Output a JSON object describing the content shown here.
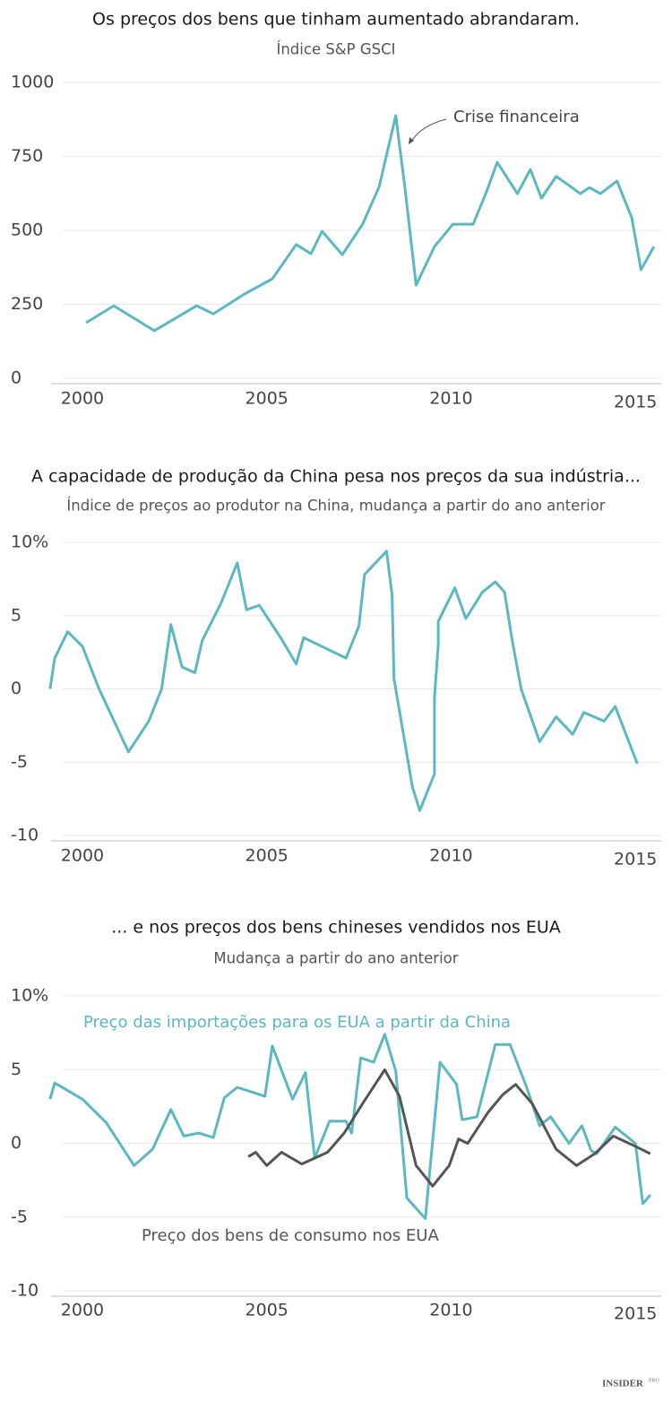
{
  "chart_data": [
    {
      "type": "line",
      "title": "Os preços dos bens que tinham aumentado abrandaram.",
      "subtitle": "Índice S&P GSCI",
      "xlim": [
        1999.15,
        2015.7
      ],
      "xticks": [
        2000,
        2005,
        2010,
        2015
      ],
      "ylim": [
        0,
        1000
      ],
      "yticks": [
        0,
        250,
        500,
        750,
        1000
      ],
      "grid": true,
      "annotations": [
        {
          "text": "Crise financeira"
        }
      ],
      "series": [
        {
          "color": "#5bb8c2",
          "x": [
            2000.1,
            2000.85,
            2001.95,
            2003.1,
            2003.55,
            2004.4,
            2005.15,
            2005.8,
            2006.2,
            2006.5,
            2007.05,
            2007.6,
            2008.05,
            2008.5,
            2008.75,
            2009.05,
            2009.55,
            2010.05,
            2010.6,
            2010.95,
            2011.25,
            2011.8,
            2012.15,
            2012.45,
            2012.85,
            2013.2,
            2013.5,
            2013.75,
            2014.05,
            2014.5,
            2014.9,
            2015.15,
            2015.5
          ],
          "values": [
            188,
            245,
            161,
            245,
            218,
            285,
            336,
            452,
            421,
            497,
            418,
            521,
            648,
            888,
            642,
            315,
            445,
            521,
            521,
            627,
            730,
            624,
            706,
            609,
            682,
            652,
            624,
            645,
            624,
            667,
            542,
            367,
            445
          ]
        }
      ]
    },
    {
      "type": "line",
      "title": "A capacidade de produção da China pesa nos preços da sua indústria...",
      "subtitle": "Índice de preços ao produtor na China, mudança a partir do ano anterior",
      "xlim": [
        1999.15,
        2015.7
      ],
      "xticks": [
        2000,
        2005,
        2010,
        2015
      ],
      "ylim": [
        -10,
        10
      ],
      "yticks": [
        -10,
        -5,
        0,
        5,
        {
          "value": 10,
          "label": "10%"
        }
      ],
      "grid": true,
      "series": [
        {
          "color": "#5bb8c2",
          "x": [
            1999.12,
            1999.25,
            1999.6,
            2000.0,
            2000.45,
            2001.25,
            2001.8,
            2002.15,
            2002.4,
            2002.7,
            2003.05,
            2003.25,
            2003.75,
            2004.2,
            2004.45,
            2004.8,
            2005.4,
            2005.8,
            2006.0,
            2007.15,
            2007.5,
            2007.65,
            2008.25,
            2008.4,
            2008.45,
            2008.95,
            2009.15,
            2009.55,
            2009.55,
            2009.65,
            2009.65,
            2010.1,
            2010.4,
            2010.85,
            2011.2,
            2011.45,
            2011.65,
            2011.9,
            2012.4,
            2012.85,
            2013.3,
            2013.6,
            2014.15,
            2014.45,
            2015.05
          ],
          "values": [
            0,
            2.1,
            3.9,
            2.9,
            0,
            -4.3,
            -2.2,
            0,
            4.4,
            1.5,
            1.1,
            3.3,
            5.8,
            8.6,
            5.4,
            5.7,
            3.4,
            1.7,
            3.5,
            2.1,
            4.3,
            7.8,
            9.4,
            6.4,
            0.7,
            -6.7,
            -8.3,
            -5.8,
            -0.6,
            3.0,
            4.6,
            6.9,
            4.8,
            6.6,
            7.3,
            6.6,
            3.4,
            0,
            -3.6,
            -1.9,
            -3.1,
            -1.6,
            -2.2,
            -1.2,
            -5.1
          ]
        }
      ]
    },
    {
      "type": "line",
      "title": "... e nos preços dos bens chineses vendidos nos EUA",
      "subtitle": "Mudança a partir do ano anterior",
      "xlim": [
        1999.15,
        2015.7
      ],
      "xticks": [
        2000,
        2005,
        2010,
        2015
      ],
      "ylim": [
        -10,
        10
      ],
      "yticks": [
        -10,
        -5,
        0,
        5,
        {
          "value": 10,
          "label": "10%"
        }
      ],
      "grid": true,
      "series": [
        {
          "name": "Preço das importações para os EUA a partir da China",
          "color": "#5bb8c2",
          "x": [
            1999.12,
            1999.25,
            2000.0,
            2000.65,
            2001.4,
            2001.9,
            2002.4,
            2002.75,
            2003.15,
            2003.55,
            2003.85,
            2004.2,
            2004.95,
            2005.15,
            2005.7,
            2006.05,
            2006.3,
            2006.7,
            2007.15,
            2007.3,
            2007.55,
            2007.9,
            2008.2,
            2008.5,
            2008.8,
            2009.3,
            2009.7,
            2010.15,
            2010.3,
            2010.7,
            2011.2,
            2011.6,
            2012.05,
            2012.4,
            2012.7,
            2013.2,
            2013.55,
            2013.8,
            2013.95,
            2014.45,
            2015.0,
            2015.2,
            2015.4
          ],
          "values": [
            3.0,
            4.1,
            3.0,
            1.4,
            -1.5,
            -0.4,
            2.3,
            0.5,
            0.7,
            0.4,
            3.1,
            3.8,
            3.2,
            6.6,
            3.0,
            4.8,
            -1.0,
            1.5,
            1.5,
            0.7,
            5.8,
            5.5,
            7.4,
            4.9,
            -3.7,
            -5.1,
            5.5,
            4.0,
            1.6,
            1.8,
            6.7,
            6.7,
            3.8,
            1.2,
            1.8,
            0,
            1.2,
            -0.5,
            -0.7,
            1.1,
            0,
            -4.1,
            -3.5
          ]
        },
        {
          "name": "Preço dos bens de consumo nos EUA",
          "color": "#555555",
          "x": [
            2004.5,
            2004.7,
            2005.0,
            2005.4,
            2005.95,
            2006.65,
            2007.1,
            2007.6,
            2008.2,
            2008.6,
            2009.05,
            2009.5,
            2009.95,
            2010.2,
            2010.45,
            2011.0,
            2011.4,
            2011.75,
            2012.2,
            2012.85,
            2013.4,
            2013.9,
            2014.4,
            2015.0,
            2015.4
          ],
          "values": [
            -0.9,
            -0.6,
            -1.5,
            -0.6,
            -1.4,
            -0.6,
            0.7,
            2.7,
            5.0,
            3.2,
            -1.5,
            -2.9,
            -1.5,
            0.3,
            0,
            2.1,
            3.3,
            4.0,
            2.7,
            -0.4,
            -1.5,
            -0.7,
            0.5,
            -0.2,
            -0.7
          ]
        }
      ]
    }
  ],
  "footer": {
    "brand": "INSIDER",
    "badge": "PRO"
  }
}
